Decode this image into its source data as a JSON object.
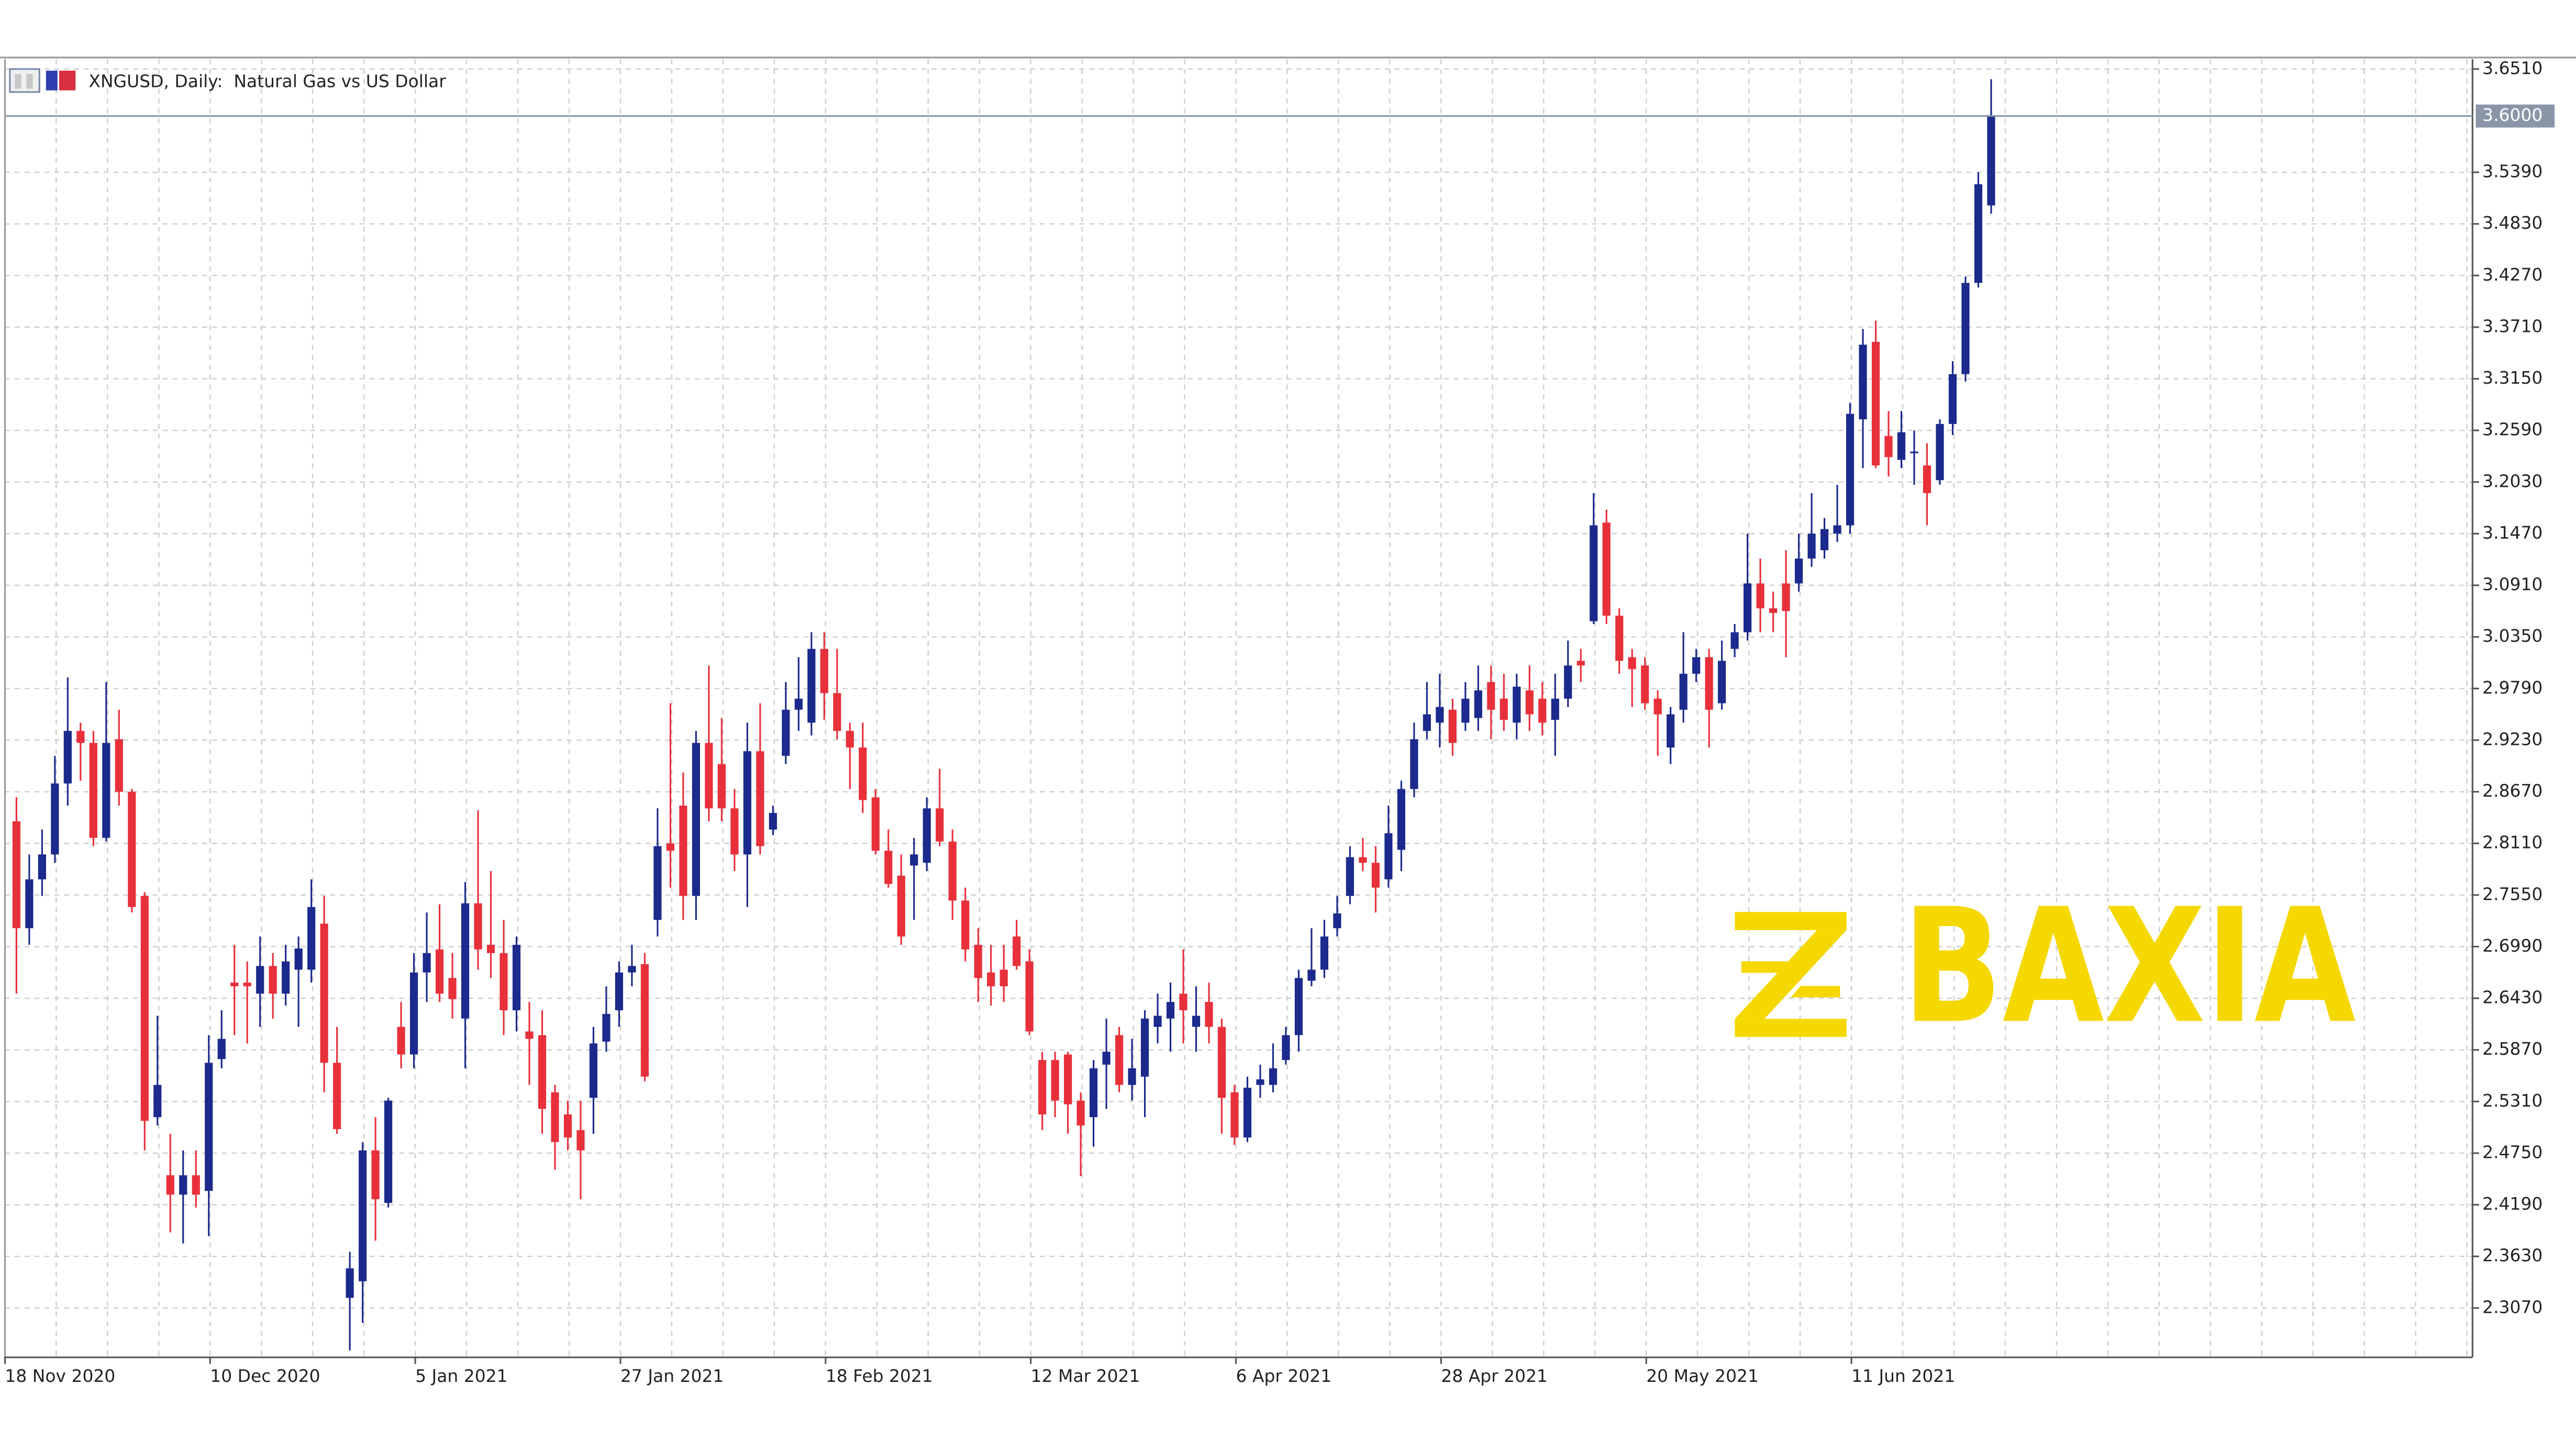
{
  "chart_data": {
    "type": "candlestick",
    "title": "XNGUSD, Daily:  Natural Gas vs US Dollar",
    "watermark": "BAXIA",
    "up_color": "#1b2a8c",
    "down_color": "#e8303a",
    "grid": true,
    "current_price": {
      "value": 3.6,
      "label": "3.6000"
    },
    "categories": [
      "18 Nov 2020",
      null,
      null,
      null,
      null,
      null,
      null,
      null,
      null,
      null,
      null,
      null,
      null,
      null,
      null,
      null,
      "10 Dec 2020",
      null,
      null,
      null,
      null,
      null,
      null,
      null,
      null,
      null,
      null,
      null,
      null,
      null,
      null,
      null,
      "5 Jan 2021",
      null,
      null,
      null,
      null,
      null,
      null,
      null,
      null,
      null,
      null,
      null,
      null,
      null,
      null,
      null,
      "27 Jan 2021",
      null,
      null,
      null,
      null,
      null,
      null,
      null,
      null,
      null,
      null,
      null,
      null,
      null,
      null,
      null,
      "18 Feb 2021",
      null,
      null,
      null,
      null,
      null,
      null,
      null,
      null,
      null,
      null,
      null,
      null,
      null,
      null,
      null,
      "12 Mar 2021",
      null,
      null,
      null,
      null,
      null,
      null,
      null,
      null,
      null,
      null,
      null,
      null,
      null,
      null,
      null,
      "6 Apr 2021",
      null,
      null,
      null,
      null,
      null,
      null,
      null,
      null,
      null,
      null,
      null,
      null,
      null,
      null,
      null,
      "28 Apr 2021",
      null,
      null,
      null,
      null,
      null,
      null,
      null,
      null,
      null,
      null,
      null,
      null,
      null,
      null,
      null,
      "20 May 2021",
      null,
      null,
      null,
      null,
      null,
      null,
      null,
      null,
      null,
      null,
      null,
      null,
      null,
      null,
      null,
      "11 Jun 2021",
      null,
      null,
      null,
      null,
      null,
      null,
      null,
      null,
      null,
      null
    ],
    "open": [
      2.835,
      2.719,
      2.772,
      2.799,
      2.876,
      2.933,
      2.92,
      2.817,
      2.924,
      2.867,
      2.754,
      2.514,
      2.451,
      2.43,
      2.451,
      2.434,
      2.577,
      2.66,
      2.66,
      2.648,
      2.678,
      2.648,
      2.674,
      2.674,
      2.724,
      2.573,
      2.318,
      2.336,
      2.478,
      2.421,
      2.612,
      2.582,
      2.671,
      2.696,
      2.665,
      2.621,
      2.746,
      2.701,
      2.692,
      2.63,
      2.607,
      2.603,
      2.541,
      2.517,
      2.5,
      2.535,
      2.596,
      2.63,
      2.671,
      2.68,
      2.728,
      2.811,
      2.852,
      2.754,
      2.92,
      2.897,
      2.849,
      2.799,
      2.911,
      2.826,
      2.906,
      2.956,
      2.942,
      3.022,
      2.974,
      2.933,
      2.915,
      2.861,
      2.803,
      2.776,
      2.787,
      2.79,
      2.849,
      2.813,
      2.749,
      2.701,
      2.671,
      2.674,
      2.71,
      2.683,
      2.576,
      2.576,
      2.582,
      2.532,
      2.514,
      2.571,
      2.603,
      2.549,
      2.558,
      2.612,
      2.621,
      2.648,
      2.612,
      2.639,
      2.612,
      2.541,
      2.492,
      2.549,
      2.549,
      2.576,
      2.603,
      2.662,
      2.674,
      2.719,
      2.754,
      2.796,
      2.79,
      2.772,
      2.804,
      2.87,
      2.933,
      2.942,
      2.956,
      2.942,
      2.947,
      2.986,
      2.968,
      2.942,
      2.977,
      2.968,
      2.945,
      2.968,
      3.009,
      3.052,
      3.159,
      3.058,
      3.013,
      3.004,
      2.968,
      2.915,
      2.956,
      2.995,
      3.013,
      2.963,
      3.022,
      3.04,
      3.093,
      3.066,
      3.093,
      3.093,
      3.12,
      3.129,
      3.147,
      3.156,
      3.271,
      3.355,
      3.253,
      3.227,
      3.236,
      3.221,
      3.205,
      3.266,
      3.32,
      3.419,
      3.503
    ],
    "high": [
      2.861,
      2.799,
      2.826,
      2.906,
      2.991,
      2.942,
      2.933,
      2.986,
      2.956,
      2.87,
      2.758,
      2.624,
      2.496,
      2.478,
      2.478,
      2.603,
      2.63,
      2.701,
      2.683,
      2.71,
      2.692,
      2.701,
      2.71,
      2.772,
      2.754,
      2.612,
      2.368,
      2.487,
      2.514,
      2.535,
      2.639,
      2.692,
      2.736,
      2.745,
      2.692,
      2.769,
      2.847,
      2.781,
      2.728,
      2.71,
      2.639,
      2.63,
      2.549,
      2.532,
      2.532,
      2.612,
      2.656,
      2.683,
      2.701,
      2.692,
      2.849,
      2.963,
      2.888,
      2.933,
      3.004,
      2.947,
      2.87,
      2.942,
      2.963,
      2.852,
      2.986,
      3.013,
      3.04,
      3.04,
      3.022,
      2.942,
      2.942,
      2.87,
      2.826,
      2.799,
      2.817,
      2.861,
      2.892,
      2.826,
      2.763,
      2.719,
      2.701,
      2.701,
      2.728,
      2.696,
      2.585,
      2.585,
      2.585,
      2.541,
      2.576,
      2.621,
      2.612,
      2.599,
      2.63,
      2.648,
      2.66,
      2.696,
      2.656,
      2.66,
      2.621,
      2.549,
      2.558,
      2.571,
      2.594,
      2.612,
      2.674,
      2.719,
      2.728,
      2.754,
      2.808,
      2.817,
      2.808,
      2.852,
      2.879,
      2.942,
      2.986,
      2.995,
      2.968,
      2.986,
      3.004,
      3.004,
      2.995,
      2.995,
      3.004,
      2.986,
      2.995,
      3.031,
      3.022,
      3.191,
      3.173,
      3.066,
      3.022,
      3.013,
      2.977,
      2.959,
      3.04,
      3.022,
      3.022,
      3.031,
      3.049,
      3.147,
      3.12,
      3.084,
      3.129,
      3.147,
      3.191,
      3.164,
      3.2,
      3.289,
      3.369,
      3.378,
      3.28,
      3.28,
      3.259,
      3.245,
      3.271,
      3.334,
      3.426,
      3.539,
      3.64
    ],
    "low": [
      2.648,
      2.701,
      2.754,
      2.79,
      2.852,
      2.879,
      2.808,
      2.813,
      2.852,
      2.736,
      2.478,
      2.505,
      2.389,
      2.377,
      2.416,
      2.385,
      2.567,
      2.603,
      2.594,
      2.612,
      2.621,
      2.635,
      2.612,
      2.66,
      2.541,
      2.496,
      2.261,
      2.291,
      2.38,
      2.416,
      2.567,
      2.567,
      2.639,
      2.639,
      2.621,
      2.567,
      2.674,
      2.665,
      2.603,
      2.607,
      2.549,
      2.496,
      2.457,
      2.478,
      2.425,
      2.496,
      2.585,
      2.612,
      2.656,
      2.553,
      2.71,
      2.763,
      2.728,
      2.728,
      2.835,
      2.835,
      2.781,
      2.742,
      2.799,
      2.82,
      2.897,
      2.933,
      2.928,
      2.945,
      2.924,
      2.87,
      2.844,
      2.799,
      2.763,
      2.701,
      2.728,
      2.781,
      2.808,
      2.728,
      2.683,
      2.639,
      2.635,
      2.639,
      2.674,
      2.603,
      2.5,
      2.514,
      2.496,
      2.45,
      2.482,
      2.523,
      2.541,
      2.532,
      2.514,
      2.594,
      2.585,
      2.594,
      2.585,
      2.594,
      2.496,
      2.484,
      2.487,
      2.535,
      2.541,
      2.571,
      2.585,
      2.656,
      2.665,
      2.71,
      2.745,
      2.781,
      2.736,
      2.763,
      2.781,
      2.861,
      2.924,
      2.915,
      2.906,
      2.933,
      2.933,
      2.924,
      2.933,
      2.924,
      2.933,
      2.928,
      2.906,
      2.959,
      2.986,
      3.049,
      3.049,
      2.995,
      2.959,
      2.956,
      2.906,
      2.897,
      2.942,
      2.986,
      2.915,
      2.956,
      3.013,
      3.031,
      3.04,
      3.04,
      3.013,
      3.084,
      3.111,
      3.12,
      3.138,
      3.147,
      3.218,
      3.218,
      3.209,
      3.218,
      3.2,
      3.156,
      3.2,
      3.254,
      3.312,
      3.414,
      3.494
    ],
    "close": [
      2.719,
      2.772,
      2.799,
      2.876,
      2.933,
      2.92,
      2.817,
      2.92,
      2.867,
      2.742,
      2.51,
      2.549,
      2.43,
      2.451,
      2.43,
      2.573,
      2.599,
      2.656,
      2.656,
      2.678,
      2.648,
      2.683,
      2.697,
      2.742,
      2.573,
      2.501,
      2.35,
      2.478,
      2.425,
      2.532,
      2.582,
      2.671,
      2.692,
      2.648,
      2.642,
      2.746,
      2.696,
      2.692,
      2.63,
      2.701,
      2.599,
      2.523,
      2.487,
      2.492,
      2.478,
      2.594,
      2.626,
      2.671,
      2.678,
      2.558,
      2.808,
      2.803,
      2.754,
      2.92,
      2.849,
      2.849,
      2.799,
      2.911,
      2.808,
      2.844,
      2.956,
      2.968,
      3.022,
      2.974,
      2.933,
      2.915,
      2.858,
      2.803,
      2.767,
      2.71,
      2.799,
      2.849,
      2.813,
      2.749,
      2.696,
      2.665,
      2.656,
      2.656,
      2.678,
      2.607,
      2.517,
      2.532,
      2.528,
      2.505,
      2.567,
      2.585,
      2.549,
      2.567,
      2.621,
      2.624,
      2.639,
      2.63,
      2.624,
      2.612,
      2.535,
      2.492,
      2.546,
      2.555,
      2.567,
      2.603,
      2.665,
      2.674,
      2.71,
      2.735,
      2.796,
      2.79,
      2.763,
      2.822,
      2.87,
      2.924,
      2.951,
      2.959,
      2.92,
      2.968,
      2.977,
      2.956,
      2.945,
      2.981,
      2.951,
      2.942,
      2.968,
      3.004,
      3.004,
      3.156,
      3.058,
      3.009,
      3.0,
      2.963,
      2.951,
      2.951,
      2.995,
      3.013,
      2.956,
      3.009,
      3.04,
      3.093,
      3.066,
      3.061,
      3.063,
      3.12,
      3.147,
      3.152,
      3.156,
      3.277,
      3.352,
      3.221,
      3.23,
      3.257,
      3.236,
      3.191,
      3.266,
      3.32,
      3.419,
      3.526,
      3.601
    ],
    "ylim": [
      2.2535,
      3.6617
    ],
    "yticks": [
      {
        "value": 2.307,
        "label": "2.3070"
      },
      {
        "value": 2.363,
        "label": "2.3630"
      },
      {
        "value": 2.419,
        "label": "2.4190"
      },
      {
        "value": 2.475,
        "label": "2.4750"
      },
      {
        "value": 2.531,
        "label": "2.5310"
      },
      {
        "value": 2.587,
        "label": "2.5870"
      },
      {
        "value": 2.643,
        "label": "2.6430"
      },
      {
        "value": 2.699,
        "label": "2.6990"
      },
      {
        "value": 2.755,
        "label": "2.7550"
      },
      {
        "value": 2.811,
        "label": "2.8110"
      },
      {
        "value": 2.867,
        "label": "2.8670"
      },
      {
        "value": 2.923,
        "label": "2.9230"
      },
      {
        "value": 2.979,
        "label": "2.9790"
      },
      {
        "value": 3.035,
        "label": "3.0350"
      },
      {
        "value": 3.091,
        "label": "3.0910"
      },
      {
        "value": 3.147,
        "label": "3.1470"
      },
      {
        "value": 3.203,
        "label": "3.2030"
      },
      {
        "value": 3.259,
        "label": "3.2590"
      },
      {
        "value": 3.315,
        "label": "3.3150"
      },
      {
        "value": 3.371,
        "label": "3.3710"
      },
      {
        "value": 3.427,
        "label": "3.4270"
      },
      {
        "value": 3.483,
        "label": "3.4830"
      },
      {
        "value": 3.539,
        "label": "3.5390"
      },
      {
        "value": 3.651,
        "label": "3.6510"
      }
    ]
  }
}
